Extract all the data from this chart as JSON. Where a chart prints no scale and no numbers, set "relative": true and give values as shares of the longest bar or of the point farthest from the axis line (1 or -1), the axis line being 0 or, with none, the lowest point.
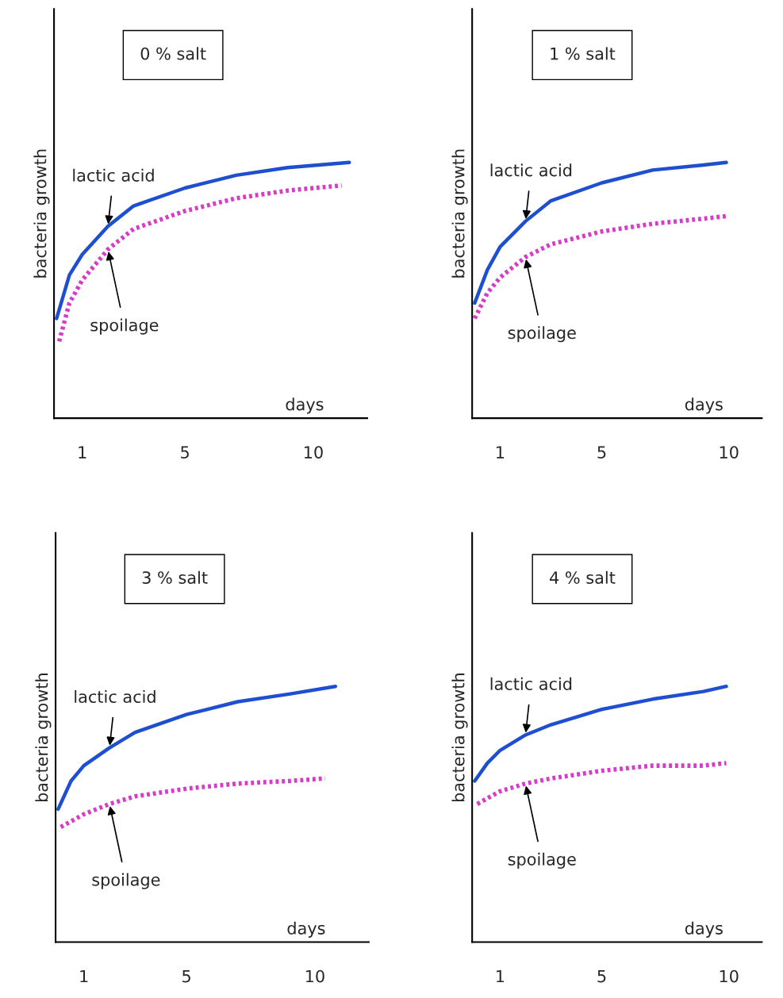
{
  "chart_data": [
    {
      "type": "line",
      "title": "0 % salt",
      "xlabel": "days",
      "ylabel": "bacteria growth",
      "relative": true,
      "xlim": [
        -0.1,
        12.1
      ],
      "xticks": [
        1,
        5,
        10
      ],
      "legend": false,
      "grid": false,
      "series": [
        {
          "name": "lactic acid",
          "color": "#1f4fd1",
          "line_style": "solid",
          "x": [
            0,
            0.5,
            1,
            2,
            3,
            5,
            7,
            9,
            11.4
          ],
          "values": [
            0.39,
            0.56,
            0.64,
            0.75,
            0.83,
            0.9,
            0.95,
            0.98,
            1
          ]
        },
        {
          "name": "spoilage",
          "color": "#d63cc8",
          "line_style": "dotted",
          "x": [
            0.1,
            0.5,
            1,
            2,
            3,
            5,
            7,
            9,
            11.1
          ],
          "values": [
            0.3,
            0.45,
            0.54,
            0.66,
            0.74,
            0.81,
            0.86,
            0.89,
            0.91
          ]
        }
      ]
    },
    {
      "type": "line",
      "title": "1 % salt",
      "xlabel": "days",
      "ylabel": "bacteria growth",
      "relative": true,
      "xlim": [
        -0.1,
        11.3
      ],
      "xticks": [
        1,
        5,
        10
      ],
      "legend": false,
      "grid": false,
      "series": [
        {
          "name": "lactic acid",
          "color": "#1f4fd1",
          "line_style": "solid",
          "x": [
            0,
            0.5,
            1,
            2,
            3,
            5,
            7,
            9,
            9.9
          ],
          "values": [
            0.45,
            0.58,
            0.67,
            0.77,
            0.85,
            0.92,
            0.97,
            0.99,
            1
          ]
        },
        {
          "name": "spoilage",
          "color": "#d63cc8",
          "line_style": "dotted",
          "x": [
            0,
            0.5,
            1,
            2,
            3,
            5,
            7,
            9,
            9.9
          ],
          "values": [
            0.39,
            0.49,
            0.55,
            0.63,
            0.68,
            0.73,
            0.76,
            0.78,
            0.79
          ]
        }
      ]
    },
    {
      "type": "line",
      "title": "3 % salt",
      "xlabel": "days",
      "ylabel": "bacteria growth",
      "relative": true,
      "xlim": [
        -0.1,
        12.1
      ],
      "xticks": [
        1,
        5,
        10
      ],
      "legend": false,
      "grid": false,
      "series": [
        {
          "name": "lactic acid",
          "color": "#1f4fd1",
          "line_style": "solid",
          "x": [
            0,
            0.5,
            1,
            2,
            3,
            5,
            7,
            9,
            10.8
          ],
          "values": [
            0.52,
            0.63,
            0.69,
            0.76,
            0.82,
            0.89,
            0.94,
            0.97,
            1
          ]
        },
        {
          "name": "spoilage",
          "color": "#d63cc8",
          "line_style": "dotted",
          "x": [
            0.1,
            1,
            2,
            3,
            5,
            7,
            9,
            10.4
          ],
          "values": [
            0.45,
            0.5,
            0.54,
            0.57,
            0.6,
            0.62,
            0.63,
            0.64
          ]
        }
      ]
    },
    {
      "type": "line",
      "title": "4 % salt",
      "xlabel": "days",
      "ylabel": "bacteria growth",
      "relative": true,
      "xlim": [
        -0.1,
        11.3
      ],
      "xticks": [
        1,
        5,
        10
      ],
      "legend": false,
      "grid": false,
      "series": [
        {
          "name": "lactic acid",
          "color": "#1f4fd1",
          "line_style": "solid",
          "x": [
            0,
            0.5,
            1,
            2,
            3,
            5,
            7,
            9,
            9.9
          ],
          "values": [
            0.63,
            0.7,
            0.75,
            0.81,
            0.85,
            0.91,
            0.95,
            0.98,
            1
          ]
        },
        {
          "name": "spoilage",
          "color": "#d63cc8",
          "line_style": "dotted",
          "x": [
            0.1,
            1,
            2,
            3,
            5,
            7,
            9,
            9.9
          ],
          "values": [
            0.54,
            0.59,
            0.62,
            0.64,
            0.67,
            0.69,
            0.69,
            0.7
          ]
        }
      ]
    }
  ]
}
